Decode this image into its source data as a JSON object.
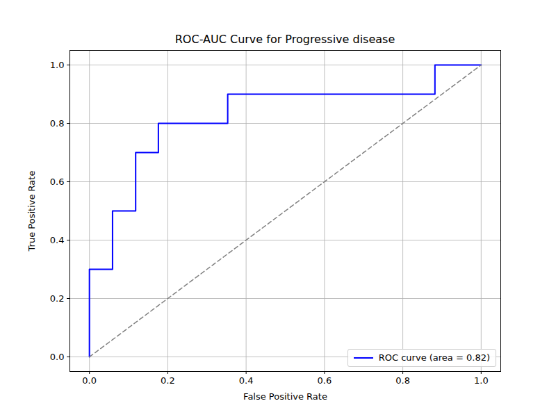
{
  "chart_data": {
    "type": "line",
    "title": "ROC-AUC Curve for Progressive disease",
    "x_label": "False Positive Rate",
    "y_label": "True Positive Rate",
    "series": [
      {
        "name": "ROC curve (area = 0.82)",
        "color": "#0000ff",
        "line_style": "solid",
        "x": [
          0,
          0,
          0.059,
          0.059,
          0.118,
          0.118,
          0.176,
          0.176,
          0.353,
          0.353,
          0.882,
          0.882,
          1
        ],
        "values": [
          0,
          0.3,
          0.3,
          0.5,
          0.5,
          0.7,
          0.7,
          0.8,
          0.8,
          0.9,
          0.9,
          1,
          1
        ]
      },
      {
        "color": "#808080",
        "line_style": "dashed",
        "x": [
          0,
          1
        ],
        "values": [
          0,
          1
        ]
      }
    ],
    "xlim": [
      -0.05,
      1.05
    ],
    "ylim": [
      -0.05,
      1.05
    ],
    "xticks": [
      {
        "value": 0,
        "label": "0.0"
      },
      0.2,
      0.4,
      0.6,
      0.8,
      {
        "value": 1,
        "label": "1.0"
      }
    ],
    "yticks": [
      {
        "value": 0,
        "label": "0.0"
      },
      0.2,
      0.4,
      0.6,
      0.8,
      {
        "value": 1,
        "label": "1.0"
      }
    ],
    "grid": true,
    "legend": "lower right"
  }
}
